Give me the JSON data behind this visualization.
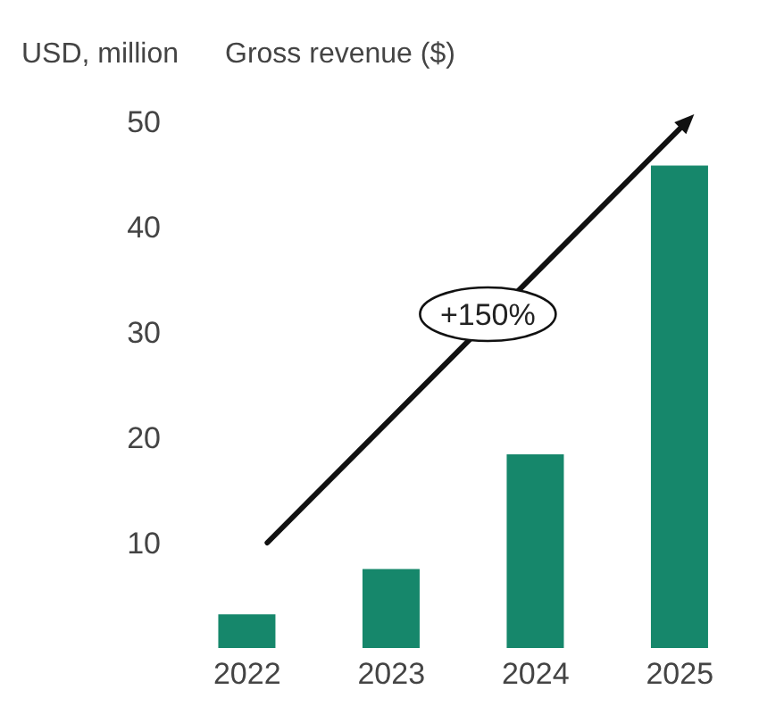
{
  "chart_data": {
    "type": "bar",
    "title": "Gross revenue ($)",
    "ylabel": "USD, million",
    "categories": [
      "2022",
      "2023",
      "2024",
      "2025"
    ],
    "values": [
      3.2,
      7.5,
      18.4,
      45.8
    ],
    "color": "#16876b",
    "ylim": [
      0,
      50
    ],
    "yticks": [
      10,
      20,
      30,
      40,
      50
    ],
    "grid": false,
    "annotations": [
      "+150%"
    ]
  }
}
